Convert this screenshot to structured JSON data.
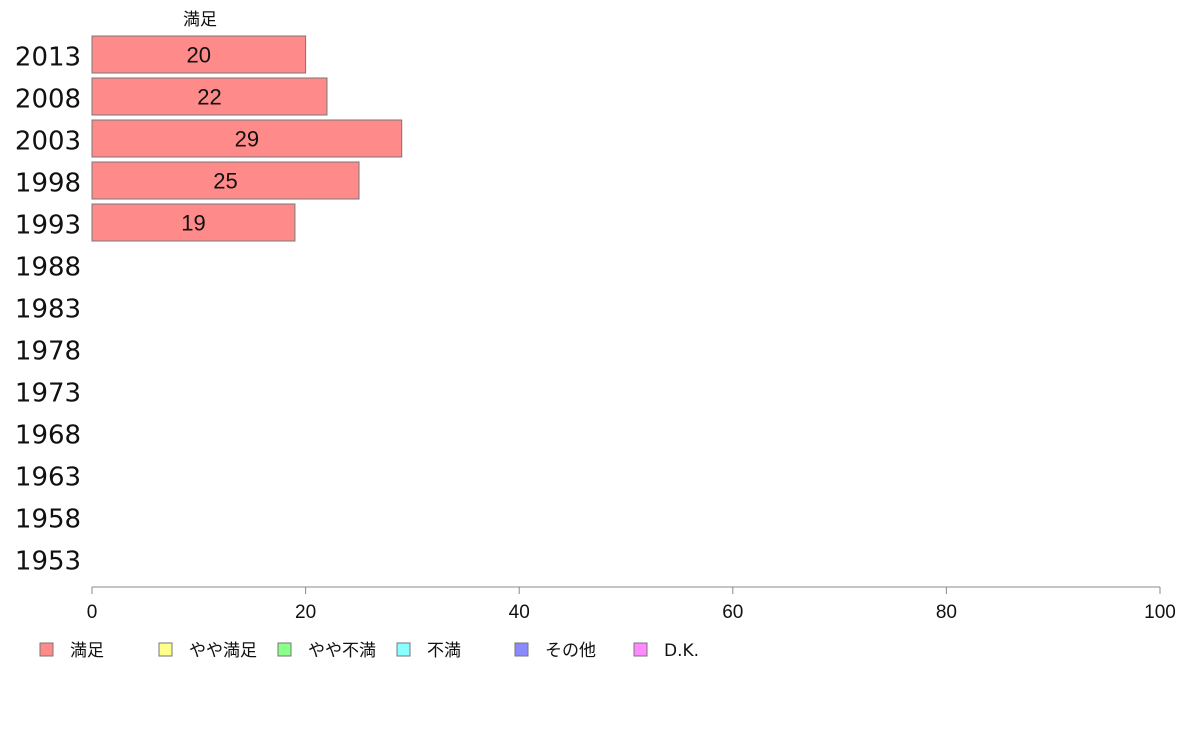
{
  "chart_data": {
    "type": "bar",
    "orientation": "horizontal",
    "stacked": true,
    "categories": [
      "2013",
      "2008",
      "2003",
      "1998",
      "1993",
      "1988",
      "1983",
      "1978",
      "1973",
      "1968",
      "1963",
      "1958",
      "1953"
    ],
    "series": [
      {
        "name": "満足",
        "color": "#ff8a8a",
        "values": [
          20,
          22,
          29,
          25,
          19,
          null,
          null,
          null,
          null,
          null,
          null,
          null,
          null
        ]
      },
      {
        "name": "やや満足",
        "color": "#ffff8a",
        "values": [
          null,
          null,
          null,
          null,
          null,
          null,
          null,
          null,
          null,
          null,
          null,
          null,
          null
        ]
      },
      {
        "name": "やや不満",
        "color": "#8aff8a",
        "values": [
          null,
          null,
          null,
          null,
          null,
          null,
          null,
          null,
          null,
          null,
          null,
          null,
          null
        ]
      },
      {
        "name": "不満",
        "color": "#8affff",
        "values": [
          null,
          null,
          null,
          null,
          null,
          null,
          null,
          null,
          null,
          null,
          null,
          null,
          null
        ]
      },
      {
        "name": "その他",
        "color": "#8a8aff",
        "values": [
          null,
          null,
          null,
          null,
          null,
          null,
          null,
          null,
          null,
          null,
          null,
          null,
          null
        ]
      },
      {
        "name": "D.K.",
        "color": "#ff8aff",
        "values": [
          null,
          null,
          null,
          null,
          null,
          null,
          null,
          null,
          null,
          null,
          null,
          null,
          null
        ]
      }
    ],
    "xlim": [
      0,
      100
    ],
    "xticks": [
      0,
      20,
      40,
      60,
      80,
      100
    ],
    "series_title": "満足",
    "legend_position": "bottom",
    "grid": false,
    "data_labels": true
  }
}
